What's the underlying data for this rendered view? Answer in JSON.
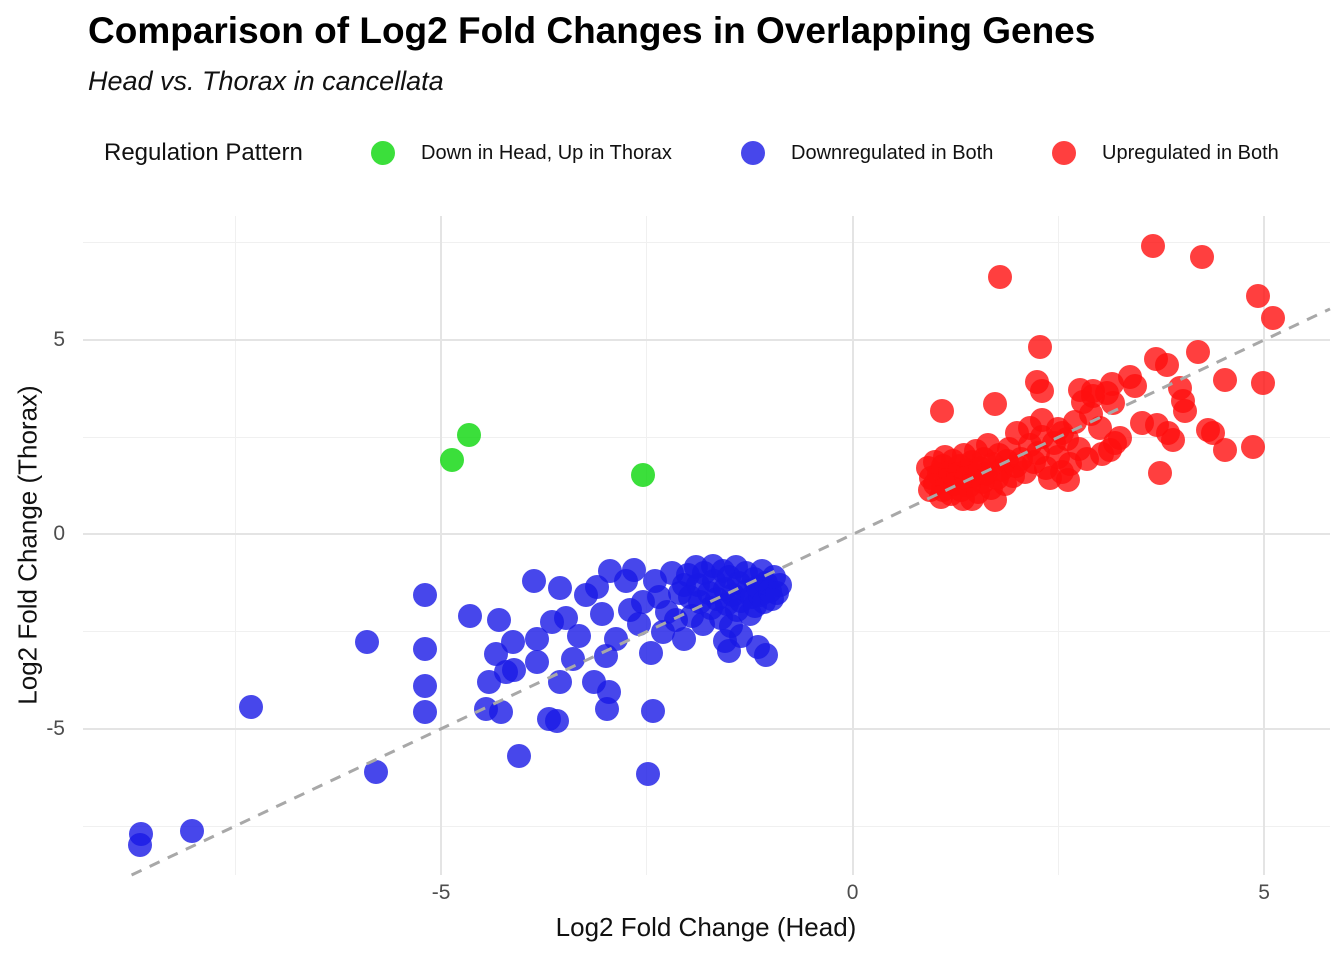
{
  "chart_data": {
    "type": "scatter",
    "title": "Comparison of Log2 Fold Changes in Overlapping Genes",
    "subtitle": "Head vs. Thorax in cancellata",
    "xlabel": "Log2 Fold Change (Head)",
    "ylabel": "Log2 Fold Change (Thorax)",
    "legend_title": "Regulation Pattern",
    "legend_position": "top",
    "xlim": [
      -9.35,
      5.8
    ],
    "ylim": [
      -8.76,
      8.19
    ],
    "x_major_ticks": [
      -5,
      0,
      5
    ],
    "x_minor_ticks": [
      -7.5,
      -2.5,
      2.5
    ],
    "y_major_ticks": [
      -5,
      0,
      5
    ],
    "y_minor_ticks": [
      -7.5,
      -2.5,
      2.5,
      7.5
    ],
    "x_tick_labels": [
      "-5",
      "0",
      "5"
    ],
    "y_tick_labels": [
      "-5",
      "0",
      "5"
    ],
    "grid": "on",
    "reference_line": {
      "kind": "identity y=x",
      "style": "dashed",
      "color": "#a8a8a8",
      "width": 3
    },
    "series": [
      {
        "name": "Down in Head, Up in Thorax",
        "color": "rgba(10,215,10,0.8)",
        "points": [
          [
            -4.87,
            1.91
          ],
          [
            -4.66,
            2.55
          ],
          [
            -2.55,
            1.52
          ]
        ]
      },
      {
        "name": "Downregulated in Both",
        "color": "rgba(25,25,230,0.8)",
        "points": [
          [
            -8.66,
            -7.99
          ],
          [
            -8.65,
            -7.71
          ],
          [
            -8.03,
            -7.63
          ],
          [
            -7.31,
            -4.43
          ],
          [
            -5.9,
            -2.76
          ],
          [
            -5.79,
            -6.11
          ],
          [
            -5.19,
            -1.55
          ],
          [
            -5.19,
            -2.94
          ],
          [
            -5.19,
            -3.89
          ],
          [
            -5.19,
            -4.56
          ],
          [
            -4.65,
            -2.09
          ],
          [
            -4.45,
            -4.48
          ],
          [
            -4.42,
            -3.79
          ],
          [
            -4.33,
            -3.07
          ],
          [
            -4.29,
            -2.2
          ],
          [
            -4.27,
            -4.56
          ],
          [
            -4.21,
            -3.53
          ],
          [
            -4.13,
            -2.76
          ],
          [
            -4.11,
            -3.5
          ],
          [
            -4.05,
            -5.7
          ],
          [
            -3.87,
            -1.21
          ],
          [
            -3.84,
            -2.68
          ],
          [
            -3.84,
            -3.27
          ],
          [
            -3.69,
            -4.74
          ],
          [
            -3.65,
            -2.24
          ],
          [
            -3.59,
            -4.79
          ],
          [
            -3.56,
            -1.39
          ],
          [
            -3.56,
            -3.79
          ],
          [
            -3.48,
            -2.16
          ],
          [
            -3.4,
            -3.2
          ],
          [
            -3.32,
            -2.6
          ],
          [
            -3.24,
            -1.57
          ],
          [
            -3.14,
            -3.79
          ],
          [
            -2.99,
            -3.12
          ],
          [
            -2.98,
            -4.48
          ],
          [
            -2.96,
            -4.05
          ],
          [
            -2.87,
            -2.68
          ],
          [
            -2.49,
            -6.16
          ],
          [
            -2.43,
            -4.55
          ],
          [
            -3.1,
            -1.35
          ],
          [
            -3.05,
            -2.05
          ],
          [
            -2.95,
            -0.95
          ],
          [
            -2.75,
            -1.2
          ],
          [
            -2.7,
            -1.95
          ],
          [
            -2.65,
            -0.92
          ],
          [
            -2.6,
            -2.3
          ],
          [
            -2.55,
            -1.75
          ],
          [
            -2.45,
            -3.05
          ],
          [
            -2.4,
            -1.2
          ],
          [
            -2.35,
            -1.6
          ],
          [
            -2.3,
            -2.5
          ],
          [
            -2.25,
            -2.0
          ],
          [
            -2.2,
            -0.98
          ],
          [
            -2.15,
            -2.2
          ],
          [
            -2.1,
            -1.5
          ],
          [
            -2.05,
            -2.7
          ],
          [
            -2.05,
            -1.3
          ],
          [
            -2.0,
            -1.05
          ],
          [
            -1.98,
            -1.6
          ],
          [
            -1.95,
            -2.1
          ],
          [
            -1.9,
            -0.85
          ],
          [
            -1.88,
            -1.3
          ],
          [
            -1.85,
            -1.75
          ],
          [
            -1.82,
            -2.3
          ],
          [
            -1.8,
            -1.0
          ],
          [
            -1.75,
            -1.5
          ],
          [
            -1.72,
            -1.9
          ],
          [
            -1.7,
            -0.8
          ],
          [
            -1.68,
            -1.2
          ],
          [
            -1.65,
            -1.65
          ],
          [
            -1.6,
            -2.15
          ],
          [
            -1.58,
            -0.95
          ],
          [
            -1.55,
            -1.4
          ],
          [
            -1.52,
            -1.8
          ],
          [
            -1.5,
            -1.1
          ],
          [
            -1.48,
            -2.35
          ],
          [
            -1.45,
            -1.55
          ],
          [
            -1.42,
            -0.85
          ],
          [
            -1.4,
            -1.95
          ],
          [
            -1.38,
            -1.25
          ],
          [
            -1.35,
            -1.7
          ],
          [
            -1.3,
            -1.0
          ],
          [
            -1.28,
            -1.45
          ],
          [
            -1.25,
            -2.05
          ],
          [
            -1.22,
            -1.6
          ],
          [
            -1.2,
            -1.15
          ],
          [
            -1.18,
            -1.85
          ],
          [
            -1.15,
            -1.35
          ],
          [
            -1.12,
            -1.55
          ],
          [
            -1.1,
            -0.95
          ],
          [
            -1.08,
            -1.75
          ],
          [
            -1.05,
            -1.25
          ],
          [
            -1.0,
            -1.45
          ],
          [
            -0.98,
            -1.65
          ],
          [
            -0.95,
            -1.1
          ],
          [
            -0.92,
            -1.5
          ],
          [
            -0.88,
            -1.3
          ],
          [
            -1.55,
            -2.75
          ],
          [
            -1.35,
            -2.6
          ],
          [
            -1.15,
            -2.9
          ],
          [
            -1.05,
            -3.1
          ],
          [
            -1.5,
            -3.0
          ]
        ]
      },
      {
        "name": "Upregulated in Both",
        "color": "rgba(255,15,15,0.8)",
        "points": [
          [
            3.65,
            7.42
          ],
          [
            4.25,
            7.14
          ],
          [
            1.79,
            6.62
          ],
          [
            4.93,
            6.13
          ],
          [
            5.11,
            5.57
          ],
          [
            2.28,
            4.83
          ],
          [
            1.09,
            3.17
          ],
          [
            1.73,
            3.35
          ],
          [
            4.2,
            4.7
          ],
          [
            3.68,
            4.5
          ],
          [
            3.82,
            4.35
          ],
          [
            4.53,
            3.98
          ],
          [
            4.98,
            3.9
          ],
          [
            3.37,
            4.05
          ],
          [
            3.15,
            3.86
          ],
          [
            3.43,
            3.81
          ],
          [
            3.09,
            3.63
          ],
          [
            2.92,
            3.69
          ],
          [
            2.76,
            3.71
          ],
          [
            3.16,
            3.38
          ],
          [
            3.98,
            3.76
          ],
          [
            4.01,
            3.43
          ],
          [
            4.04,
            3.17
          ],
          [
            2.24,
            3.91
          ],
          [
            2.3,
            3.7
          ],
          [
            2.8,
            3.4
          ],
          [
            2.92,
            3.55
          ],
          [
            3.0,
            2.73
          ],
          [
            3.52,
            2.86
          ],
          [
            3.7,
            2.81
          ],
          [
            3.83,
            2.6
          ],
          [
            3.89,
            2.42
          ],
          [
            4.32,
            2.68
          ],
          [
            4.38,
            2.6
          ],
          [
            4.53,
            2.16
          ],
          [
            4.87,
            2.24
          ],
          [
            3.25,
            2.47
          ],
          [
            3.19,
            2.34
          ],
          [
            3.03,
            2.08
          ],
          [
            3.13,
            2.16
          ],
          [
            3.73,
            1.57
          ],
          [
            2.62,
            1.41
          ],
          [
            2.64,
            1.8
          ],
          [
            2.0,
            2.6
          ],
          [
            2.15,
            2.75
          ],
          [
            2.3,
            2.95
          ],
          [
            2.5,
            2.7
          ],
          [
            2.6,
            2.45
          ],
          [
            2.75,
            2.2
          ],
          [
            2.85,
            1.95
          ],
          [
            2.9,
            3.1
          ],
          [
            2.7,
            2.9
          ],
          [
            2.4,
            1.45
          ],
          [
            2.55,
            1.6
          ],
          [
            0.91,
            1.7
          ],
          [
            0.94,
            1.13
          ],
          [
            0.95,
            1.45
          ],
          [
            1.0,
            1.3
          ],
          [
            1.0,
            1.85
          ],
          [
            1.05,
            1.55
          ],
          [
            1.08,
            0.95
          ],
          [
            1.1,
            1.15
          ],
          [
            1.1,
            1.75
          ],
          [
            1.12,
            2.0
          ],
          [
            1.15,
            1.4
          ],
          [
            1.18,
            1.6
          ],
          [
            1.2,
            1.05
          ],
          [
            1.22,
            1.9
          ],
          [
            1.25,
            1.3
          ],
          [
            1.28,
            1.55
          ],
          [
            1.3,
            1.75
          ],
          [
            1.32,
            1.15
          ],
          [
            1.34,
            0.9
          ],
          [
            1.35,
            2.05
          ],
          [
            1.38,
            1.45
          ],
          [
            1.4,
            1.65
          ],
          [
            1.42,
            1.25
          ],
          [
            1.45,
            0.92
          ],
          [
            1.45,
            1.85
          ],
          [
            1.48,
            1.5
          ],
          [
            1.5,
            2.15
          ],
          [
            1.52,
            1.1
          ],
          [
            1.55,
            1.7
          ],
          [
            1.58,
            1.35
          ],
          [
            1.6,
            1.95
          ],
          [
            1.62,
            1.55
          ],
          [
            1.65,
            2.3
          ],
          [
            1.68,
            1.2
          ],
          [
            1.7,
            1.8
          ],
          [
            1.73,
            0.88
          ],
          [
            1.75,
            1.45
          ],
          [
            1.78,
            2.05
          ],
          [
            1.8,
            1.65
          ],
          [
            1.85,
            1.3
          ],
          [
            1.88,
            1.9
          ],
          [
            1.9,
            2.2
          ],
          [
            1.95,
            1.5
          ],
          [
            1.98,
            1.75
          ],
          [
            2.05,
            1.95
          ],
          [
            2.1,
            1.6
          ],
          [
            2.15,
            2.3
          ],
          [
            2.2,
            1.85
          ],
          [
            2.25,
            2.1
          ],
          [
            2.3,
            2.5
          ],
          [
            2.35,
            1.7
          ],
          [
            2.45,
            2.35
          ],
          [
            2.5,
            2.0
          ],
          [
            2.55,
            2.6
          ]
        ]
      }
    ]
  },
  "legend_item_lefts": [
    371,
    741,
    1052
  ]
}
